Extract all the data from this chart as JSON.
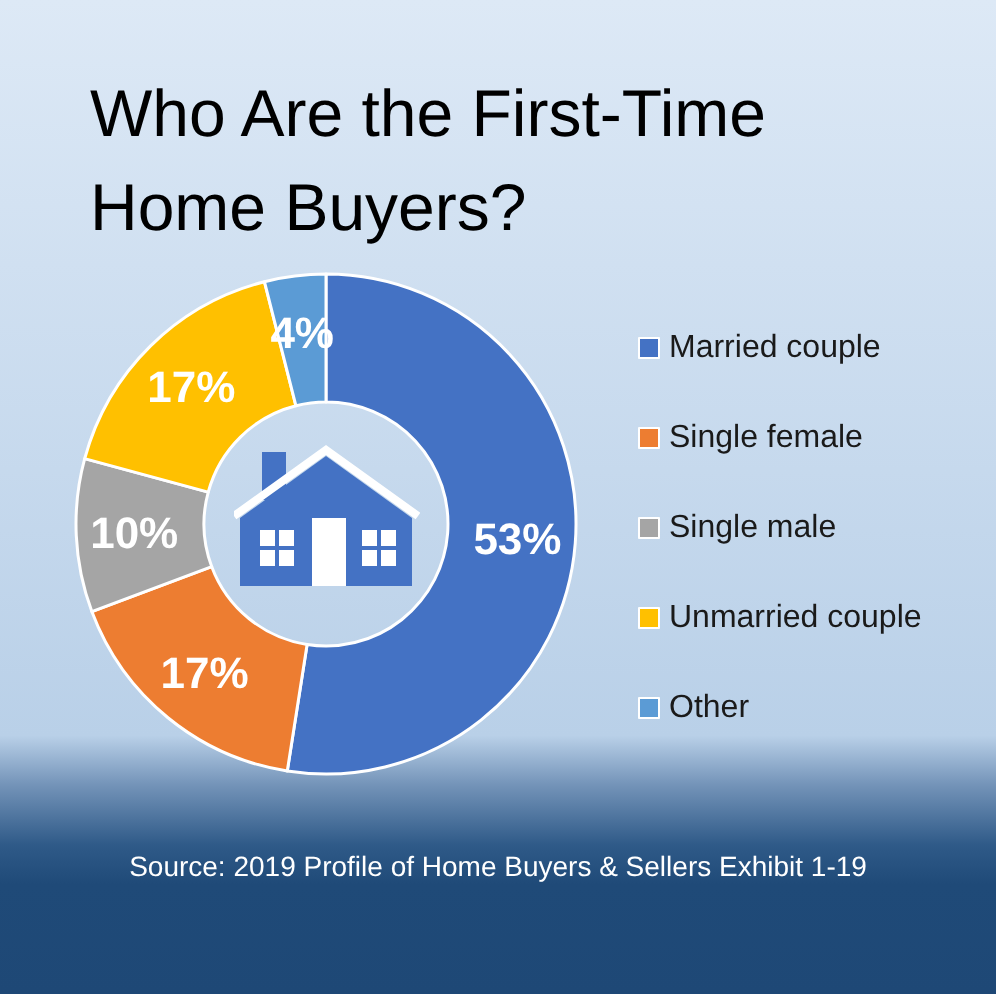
{
  "chart_data": {
    "type": "donut",
    "title": "Who Are the First-Time Home Buyers?",
    "categories": [
      "Married couple",
      "Single female",
      "Single male",
      "Unmarried couple",
      "Other"
    ],
    "values": [
      53,
      17,
      10,
      17,
      4
    ],
    "colors": [
      "#4472c4",
      "#ed7d31",
      "#a5a5a5",
      "#ffc000",
      "#5b9bd5"
    ],
    "value_labels": [
      "53%",
      "17%",
      "10%",
      "17%",
      "4%"
    ],
    "legend": "right",
    "annotations": [
      "Source: 2019 Profile of Home Buyers & Sellers Exhibit 1-19"
    ]
  }
}
